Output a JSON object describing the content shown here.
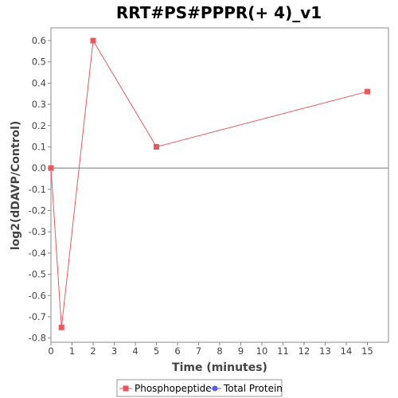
{
  "chart_data": {
    "type": "line",
    "title": "RRT#PS#PPPR(+ 4)_v1",
    "xlabel": "Time (minutes)",
    "ylabel": "log2(dDAVP/Control)",
    "xlim": [
      0,
      16
    ],
    "ylim": [
      -0.82,
      0.66
    ],
    "x_ticks": [
      0,
      1,
      2,
      3,
      4,
      5,
      6,
      7,
      8,
      9,
      10,
      11,
      12,
      13,
      14,
      15
    ],
    "y_ticks": [
      -0.8,
      -0.7,
      -0.6,
      -0.5,
      -0.4,
      -0.3,
      -0.2,
      -0.1,
      0.0,
      0.1,
      0.2,
      0.3,
      0.4,
      0.5,
      0.6
    ],
    "zero_line": true,
    "grid": false,
    "legend_position": "bottom",
    "series": [
      {
        "name": "Phosphopeptide",
        "color": "#e8595e",
        "marker": "square",
        "x": [
          0,
          0.5,
          2,
          5,
          15
        ],
        "y": [
          0.0,
          -0.75,
          0.6,
          0.1,
          0.36
        ]
      }
    ],
    "legend": [
      {
        "label": "Phosphopeptide",
        "color": "#e8595e",
        "marker": "square"
      },
      {
        "label": "Total Protein",
        "color": "#5560e8",
        "marker": "circle"
      }
    ]
  }
}
